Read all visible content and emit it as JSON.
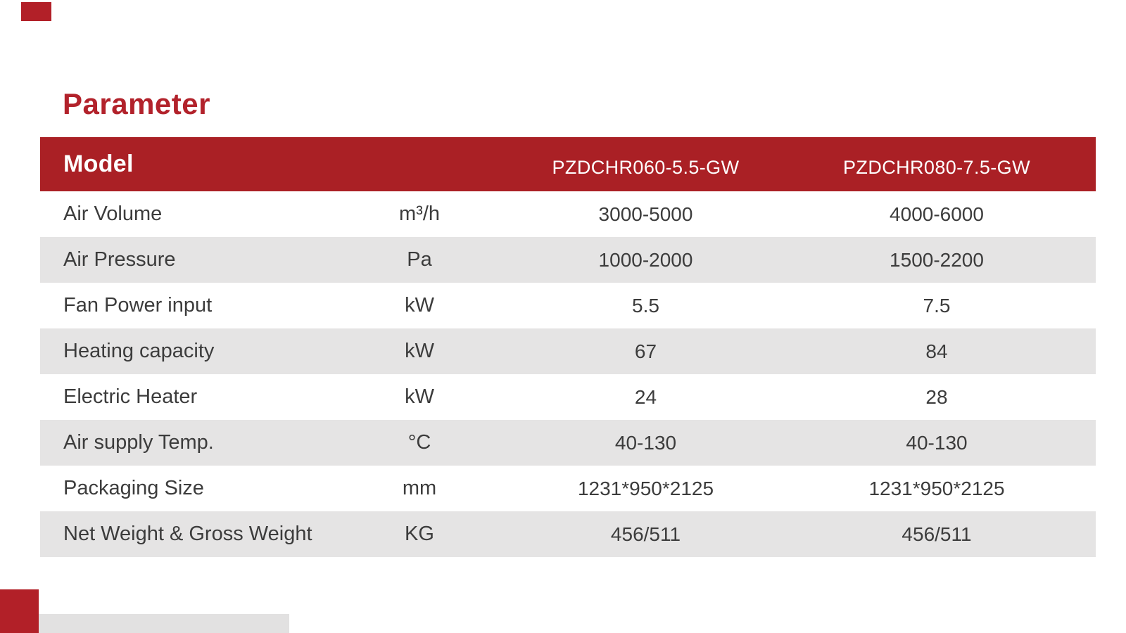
{
  "page": {
    "title": "Parameter",
    "accent_red": "#b22028",
    "header_red": "#aa2025",
    "row_gray": "#e5e4e4",
    "text_dark": "#3c3c3c"
  },
  "table": {
    "header": {
      "label": "Model",
      "models": [
        "PZDCHR060-5.5-GW",
        "PZDCHR080-7.5-GW"
      ]
    },
    "rows": [
      {
        "label": "Air Volume",
        "unit": "m³/h",
        "values": [
          "3000-5000",
          "4000-6000"
        ]
      },
      {
        "label": "Air Pressure",
        "unit": "Pa",
        "values": [
          "1000-2000",
          "1500-2200"
        ]
      },
      {
        "label": "Fan Power input",
        "unit": "kW",
        "values": [
          "5.5",
          "7.5"
        ]
      },
      {
        "label": "Heating capacity",
        "unit": "kW",
        "values": [
          "67",
          "84"
        ]
      },
      {
        "label": "Electric Heater",
        "unit": "kW",
        "values": [
          "24",
          "28"
        ]
      },
      {
        "label": "Air supply Temp.",
        "unit": "°C",
        "values": [
          "40-130",
          "40-130"
        ]
      },
      {
        "label": "Packaging Size",
        "unit": "mm",
        "values": [
          "1231*950*2125",
          "1231*950*2125"
        ]
      },
      {
        "label": "Net Weight & Gross Weight",
        "unit": "KG",
        "values": [
          "456/511",
          "456/511"
        ]
      }
    ]
  }
}
